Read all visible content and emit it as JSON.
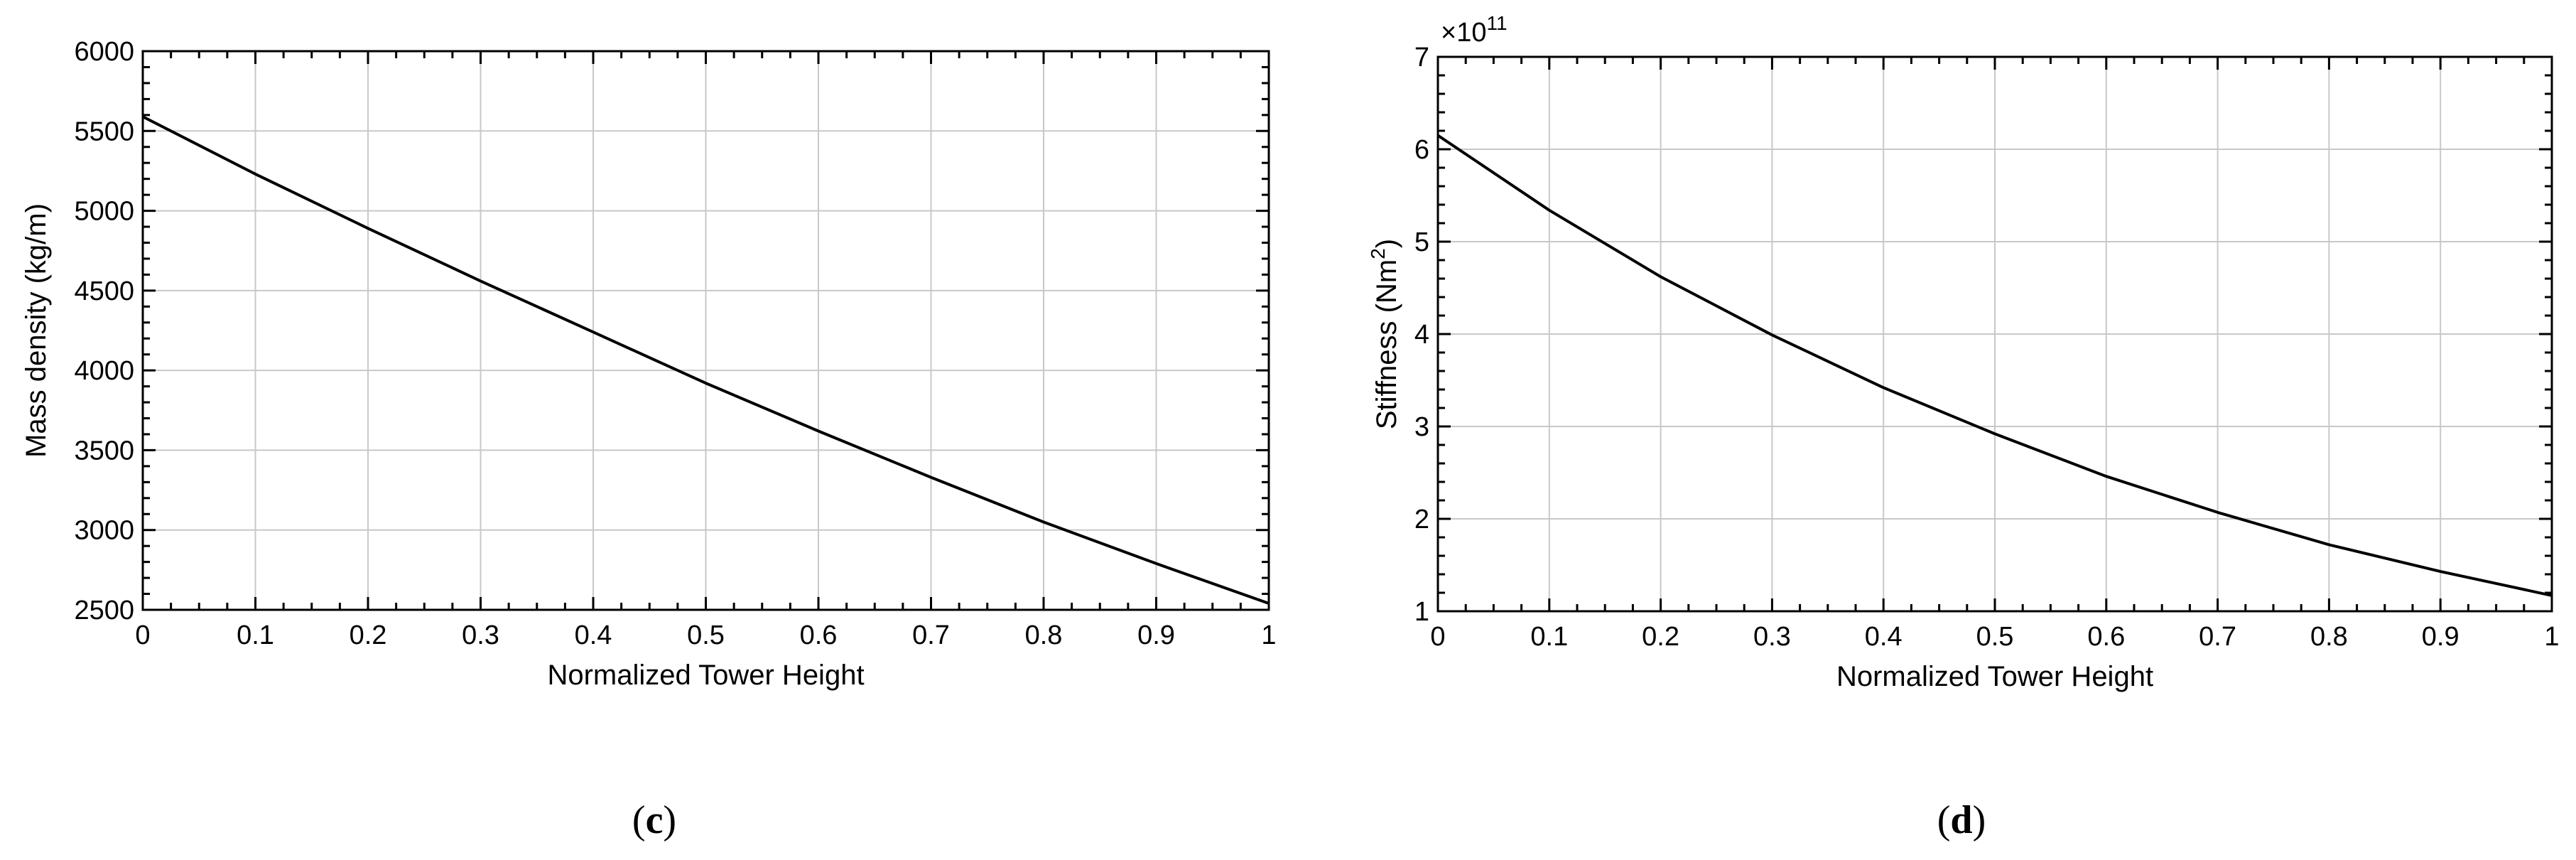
{
  "chart_data": [
    {
      "type": "line",
      "panel_label": "c",
      "title": "",
      "xlabel": "Normalized Tower Height",
      "ylabel": "Mass density (kg/m)",
      "xlim": [
        0,
        1
      ],
      "ylim": [
        2500,
        6000
      ],
      "grid": true,
      "xticks": [
        0,
        0.1,
        0.2,
        0.3,
        0.4,
        0.5,
        0.6,
        0.7,
        0.8,
        0.9,
        1
      ],
      "xtick_labels": [
        "0",
        "0.1",
        "0.2",
        "0.3",
        "0.4",
        "0.5",
        "0.6",
        "0.7",
        "0.8",
        "0.9",
        "1"
      ],
      "yticks": [
        2500,
        3000,
        3500,
        4000,
        4500,
        5000,
        5500,
        6000
      ],
      "ytick_labels": [
        "2500",
        "3000",
        "3500",
        "4000",
        "4500",
        "5000",
        "5500",
        "6000"
      ],
      "series": [
        {
          "x": [
            0,
            0.1,
            0.2,
            0.3,
            0.4,
            0.5,
            0.6,
            0.7,
            0.8,
            0.9,
            1.0
          ],
          "y": [
            5590,
            5230,
            4890,
            4560,
            4240,
            3920,
            3620,
            3330,
            3050,
            2790,
            2540
          ],
          "color": "#000000"
        }
      ]
    },
    {
      "type": "line",
      "panel_label": "d",
      "title": "",
      "xlabel": "Normalized Tower Height",
      "ylabel": "Stiffness (Nm",
      "ylabel_sup": "2",
      "ylabel_end": ")",
      "multiplier": "×10",
      "multiplier_exp": "11",
      "xlim": [
        0,
        1
      ],
      "ylim": [
        1,
        7
      ],
      "grid": true,
      "xticks": [
        0,
        0.1,
        0.2,
        0.3,
        0.4,
        0.5,
        0.6,
        0.7,
        0.8,
        0.9,
        1
      ],
      "xtick_labels": [
        "0",
        "0.1",
        "0.2",
        "0.3",
        "0.4",
        "0.5",
        "0.6",
        "0.7",
        "0.8",
        "0.9",
        "1"
      ],
      "yticks": [
        1,
        2,
        3,
        4,
        5,
        6,
        7
      ],
      "ytick_labels": [
        "1",
        "2",
        "3",
        "4",
        "5",
        "6",
        "7"
      ],
      "series": [
        {
          "x": [
            0,
            0.1,
            0.2,
            0.3,
            0.4,
            0.5,
            0.6,
            0.7,
            0.8,
            0.9,
            1.0
          ],
          "y": [
            6.15,
            5.34,
            4.62,
            3.99,
            3.42,
            2.92,
            2.46,
            2.07,
            1.72,
            1.43,
            1.17
          ],
          "color": "#000000"
        }
      ]
    }
  ]
}
